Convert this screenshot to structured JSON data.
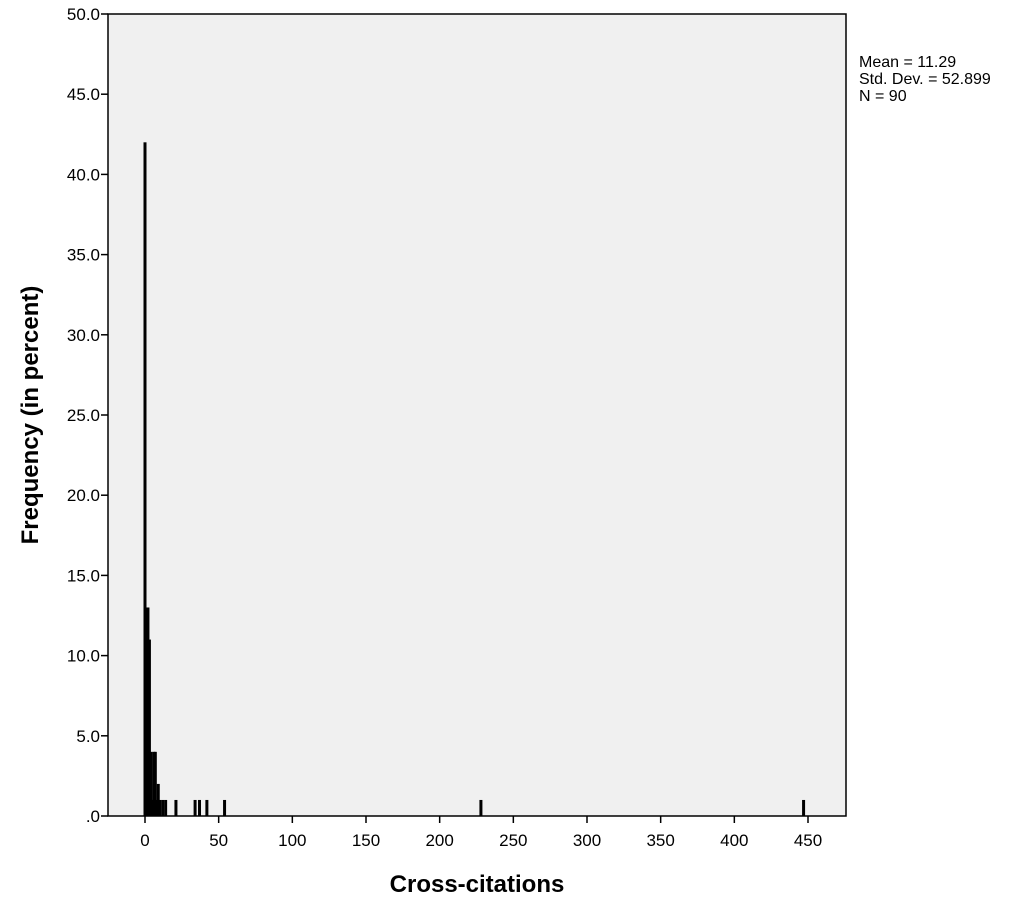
{
  "chart_data": {
    "type": "bar",
    "title": "",
    "xlabel": "Cross-citations",
    "ylabel": "Frequency (in percent)",
    "xlim": [
      -25,
      475
    ],
    "ylim": [
      0,
      50
    ],
    "x_ticks": [
      0,
      50,
      100,
      150,
      200,
      250,
      300,
      350,
      400,
      450
    ],
    "x_tick_labels": [
      "0",
      "50",
      "100",
      "150",
      "200",
      "250",
      "300",
      "350",
      "400",
      "450"
    ],
    "y_ticks": [
      0,
      5,
      10,
      15,
      20,
      25,
      30,
      35,
      40,
      45,
      50
    ],
    "y_tick_labels": [
      ".0",
      "5.0",
      "10.0",
      "15.0",
      "20.0",
      "25.0",
      "30.0",
      "35.0",
      "40.0",
      "45.0",
      "50.0"
    ],
    "grid": false,
    "plot_background": "#f0f0f0",
    "bar_color": "#000000",
    "bars": [
      {
        "x": 0,
        "value": 42
      },
      {
        "x": 1,
        "value": 1
      },
      {
        "x": 2,
        "value": 13
      },
      {
        "x": 3,
        "value": 11
      },
      {
        "x": 4,
        "value": 4
      },
      {
        "x": 5,
        "value": 1
      },
      {
        "x": 6,
        "value": 4
      },
      {
        "x": 7,
        "value": 4
      },
      {
        "x": 8,
        "value": 1
      },
      {
        "x": 9,
        "value": 2
      },
      {
        "x": 10,
        "value": 1
      },
      {
        "x": 12,
        "value": 1
      },
      {
        "x": 14,
        "value": 1
      },
      {
        "x": 21,
        "value": 1
      },
      {
        "x": 34,
        "value": 1
      },
      {
        "x": 37,
        "value": 1
      },
      {
        "x": 42,
        "value": 1
      },
      {
        "x": 54,
        "value": 1
      },
      {
        "x": 228,
        "value": 1
      },
      {
        "x": 447,
        "value": 1
      }
    ],
    "stats": {
      "mean": "Mean = 11.29",
      "std_dev": "Std. Dev. = 52.899",
      "n": "N = 90"
    }
  }
}
